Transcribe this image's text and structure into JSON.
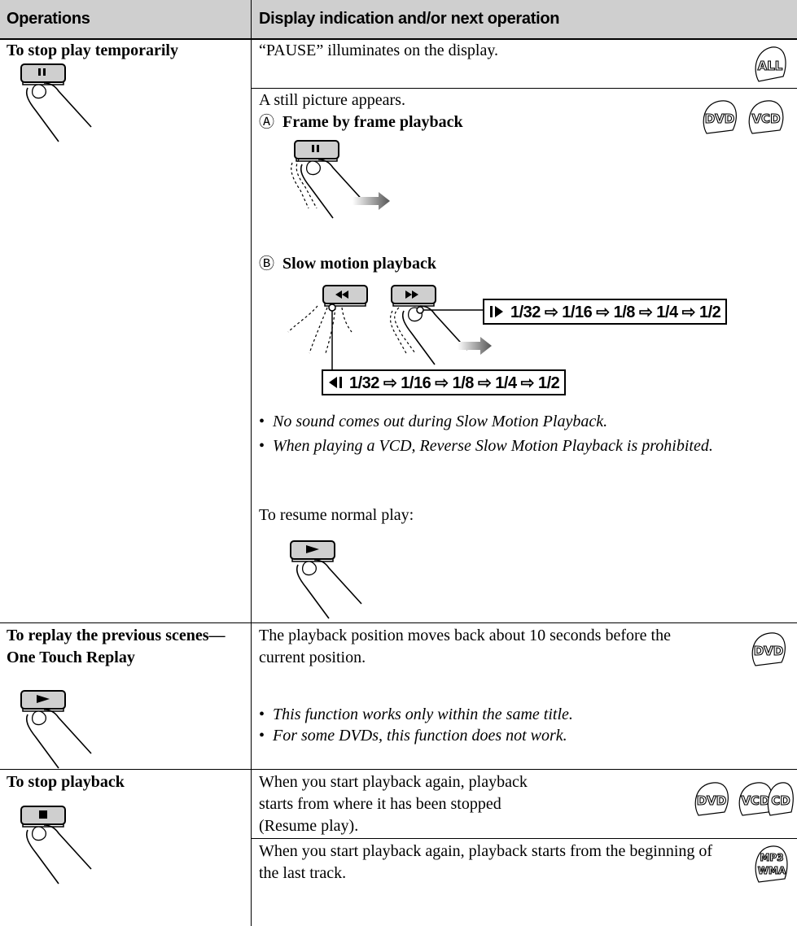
{
  "table": {
    "headers": [
      "Operations",
      "Display indication and/or next operation"
    ],
    "rows": [
      {
        "operation": "To stop play temporarily",
        "entries": [
          {
            "text": "“PAUSE” illuminates on the display.",
            "discs": [
              "ALL"
            ]
          },
          {
            "text": "A still picture appears.",
            "discs": [
              "DVD",
              "VCD"
            ],
            "steps": [
              {
                "marker": "Ⓐ",
                "label": "Frame by frame playback"
              },
              {
                "marker": "Ⓑ",
                "label": "Slow motion playback"
              }
            ],
            "slow_forward": "1/32 ⇨ 1/16 ⇨ 1/8 ⇨ 1/4 ⇨ 1/2",
            "slow_reverse": "1/32 ⇨ 1/16 ⇨ 1/8 ⇨ 1/4 ⇨ 1/2",
            "notes": [
              "No sound comes out during Slow Motion Playback.",
              "When playing a VCD, Reverse Slow Motion Playback is prohibited."
            ],
            "resume": "To resume normal play:"
          }
        ]
      },
      {
        "operation": "To replay the previous scenes—One Touch Replay",
        "entries": [
          {
            "text": "The playback position moves back about 10 seconds before the current position.",
            "discs": [
              "DVD"
            ],
            "notes": [
              "This function works only within the same title.",
              "For some DVDs, this function does not work."
            ]
          }
        ]
      },
      {
        "operation": "To stop playback",
        "entries": [
          {
            "text": "When you start playback again, playback starts from where it has been stopped (Resume play).",
            "discs": [
              "DVD",
              "VCD",
              "CD"
            ]
          },
          {
            "text": "When you start playback again, playback starts from the beginning of the last track.",
            "discs": [
              "MP3",
              "WMA"
            ]
          }
        ]
      }
    ]
  }
}
